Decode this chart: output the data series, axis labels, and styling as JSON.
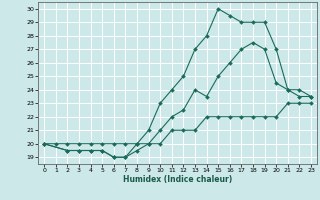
{
  "title": "",
  "xlabel": "Humidex (Indice chaleur)",
  "bg_color": "#cce8e8",
  "grid_color": "#ffffff",
  "line_color": "#1a6b5a",
  "xlim": [
    -0.5,
    23.5
  ],
  "ylim": [
    18.5,
    30.5
  ],
  "xticks": [
    0,
    1,
    2,
    3,
    4,
    5,
    6,
    7,
    8,
    9,
    10,
    11,
    12,
    13,
    14,
    15,
    16,
    17,
    18,
    19,
    20,
    21,
    22,
    23
  ],
  "yticks": [
    19,
    20,
    21,
    22,
    23,
    24,
    25,
    26,
    27,
    28,
    29,
    30
  ],
  "line1_x": [
    0,
    1,
    2,
    3,
    4,
    5,
    6,
    7,
    8,
    9,
    10,
    11,
    12,
    13,
    14,
    15,
    16,
    17,
    18,
    19,
    20,
    21,
    22,
    23
  ],
  "line1_y": [
    20,
    20,
    20,
    20,
    20,
    20,
    20,
    20,
    20,
    20,
    20,
    21,
    21,
    21,
    22,
    22,
    22,
    22,
    22,
    22,
    22,
    23,
    23,
    23
  ],
  "line2_x": [
    0,
    2,
    3,
    4,
    5,
    6,
    7,
    8,
    9,
    10,
    11,
    12,
    13,
    14,
    15,
    16,
    17,
    18,
    19,
    20,
    21,
    22,
    23
  ],
  "line2_y": [
    20,
    19.5,
    19.5,
    19.5,
    19.5,
    19,
    19,
    19.5,
    20,
    21,
    22,
    22.5,
    24,
    23.5,
    25,
    26,
    27,
    27.5,
    27,
    24.5,
    24,
    23.5,
    23.5
  ],
  "line3_x": [
    0,
    2,
    3,
    4,
    5,
    6,
    7,
    8,
    9,
    10,
    11,
    12,
    13,
    14,
    15,
    16,
    17,
    18,
    19,
    20,
    21,
    22,
    23
  ],
  "line3_y": [
    20,
    19.5,
    19.5,
    19.5,
    19.5,
    19,
    19,
    20,
    21,
    23,
    24,
    25,
    27,
    28,
    30,
    29.5,
    29,
    29,
    29,
    27,
    24,
    24,
    23.5
  ]
}
